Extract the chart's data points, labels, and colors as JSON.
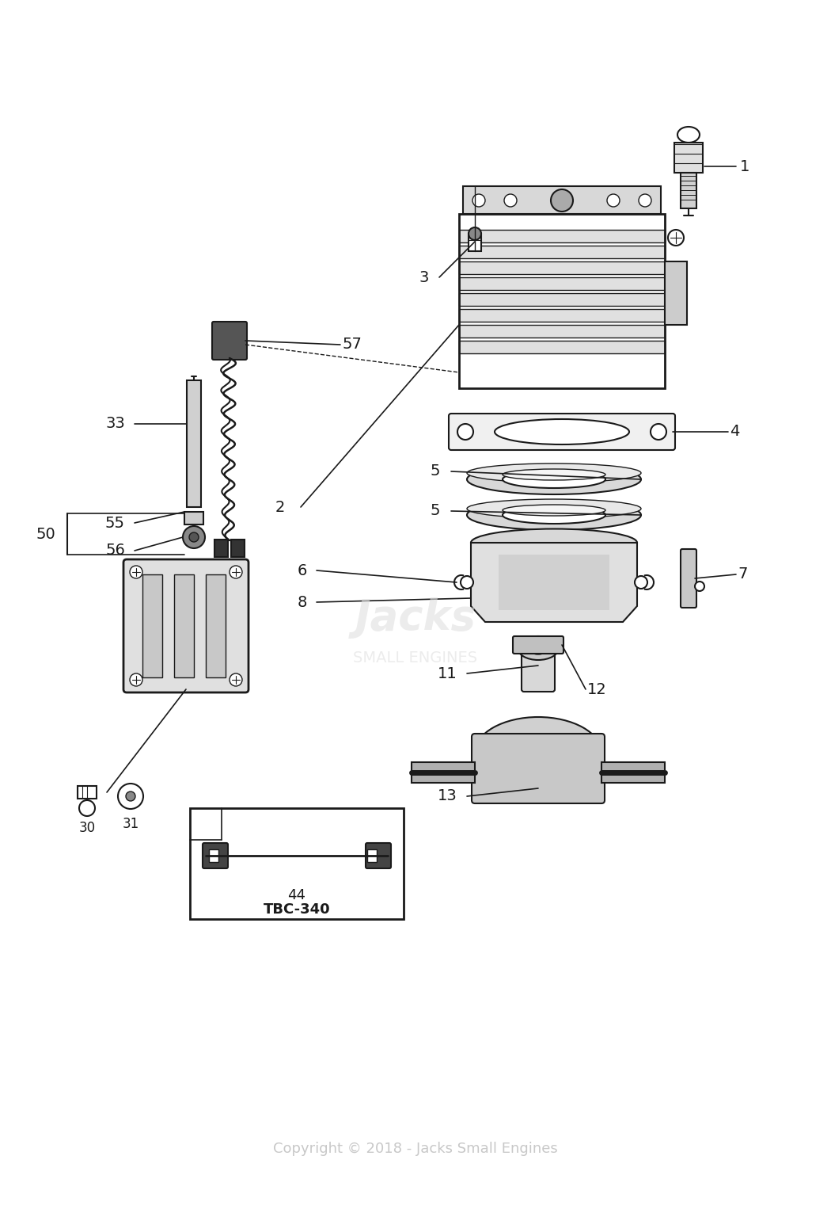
{
  "bg_color": "#ffffff",
  "dark": "#1a1a1a",
  "gray1": "#e8e8e8",
  "gray2": "#d0d0d0",
  "gray3": "#b0b0b0",
  "copyright_text": "Copyright © 2018 - Jacks Small Engines",
  "copyright_color": "#c8c8c8",
  "figsize": [
    10.5,
    15.31
  ],
  "dpi": 100,
  "xlim": [
    0,
    1050
  ],
  "ylim": [
    0,
    1531
  ]
}
